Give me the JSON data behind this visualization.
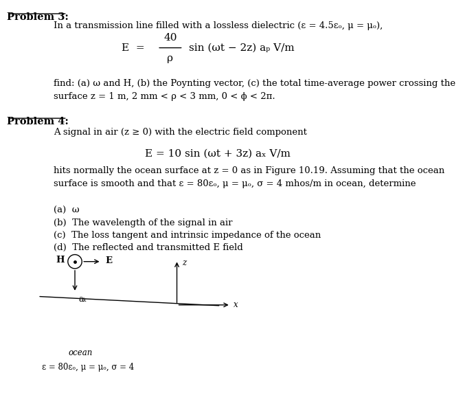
{
  "bg_color": "#ffffff",
  "text_color": "#000000",
  "fig_width": 6.93,
  "fig_height": 5.72,
  "problem3_label": "Problem 3:",
  "problem3_line1": "In a transmission line filled with a lossless dielectric (ε = 4.5εₒ, μ = μₒ),",
  "problem3_find": "find: (a) ω and H, (b) the Poynting vector, (c) the total time-average power crossing the\nsurface z = 1 m, 2 mm < ρ < 3 mm, 0 < ϕ < 2π.",
  "problem4_label": "Problem 4:",
  "problem4_line1": "A signal in air (z ≥ 0) with the electric field component",
  "problem4_text": "hits normally the ocean surface at z = 0 as in Figure 10.19. Assuming that the ocean\nsurface is smooth and that ε = 80εₒ, μ = μₒ, σ = 4 mhos/m in ocean, determine",
  "item_a": "(a)  ω",
  "item_b": "(b)  The wavelength of the signal in air",
  "item_c": "(c)  The loss tangent and intrinsic impedance of the ocean",
  "item_d": "(d)  The reflected and transmitted E field",
  "ocean_label": "ocean",
  "ocean_params": "ε = 80εₒ, μ = μₒ, σ = 4"
}
